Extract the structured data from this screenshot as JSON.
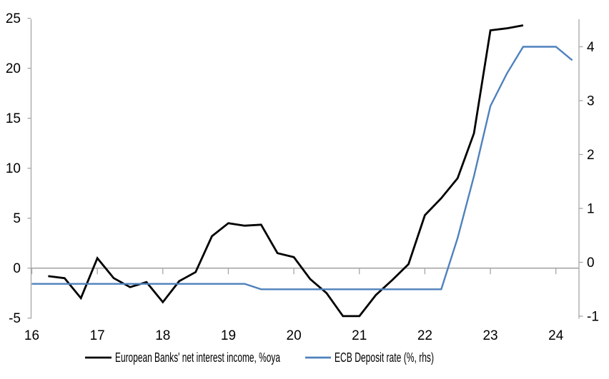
{
  "chart_data": {
    "type": "line",
    "title": "",
    "x_axis": {
      "ticks": [
        16,
        17,
        18,
        19,
        20,
        21,
        22,
        23,
        24
      ],
      "range": [
        16,
        24.36
      ],
      "tick_labels": [
        "16",
        "17",
        "18",
        "19",
        "20",
        "21",
        "22",
        "23",
        "24"
      ]
    },
    "left_axis": {
      "ticks": [
        -5,
        0,
        5,
        10,
        15,
        20,
        25
      ],
      "range": [
        -5,
        25
      ],
      "zero_gridline": true
    },
    "right_axis": {
      "ticks": [
        -1,
        0,
        1,
        2,
        3,
        4
      ],
      "range": [
        -1.05,
        4.5
      ]
    },
    "grid": "zero-line-only",
    "legend_position": "bottom",
    "series": [
      {
        "name": "European Banks' net interest income, %oya",
        "color": "#000000",
        "axis": "left",
        "width": 2.8,
        "points": [
          [
            16.25,
            -0.8
          ],
          [
            16.5,
            -1.0
          ],
          [
            16.75,
            -3.0
          ],
          [
            17.0,
            1.0
          ],
          [
            17.25,
            -1.0
          ],
          [
            17.5,
            -1.9
          ],
          [
            17.75,
            -1.4
          ],
          [
            18.0,
            -3.4
          ],
          [
            18.25,
            -1.3
          ],
          [
            18.5,
            -0.4
          ],
          [
            18.75,
            3.2
          ],
          [
            19.0,
            4.5
          ],
          [
            19.25,
            4.25
          ],
          [
            19.5,
            4.35
          ],
          [
            19.75,
            1.5
          ],
          [
            20.0,
            1.1
          ],
          [
            20.25,
            -1.1
          ],
          [
            20.5,
            -2.5
          ],
          [
            20.75,
            -4.8
          ],
          [
            21.0,
            -4.8
          ],
          [
            21.25,
            -2.7
          ],
          [
            21.5,
            -1.2
          ],
          [
            21.75,
            0.4
          ],
          [
            22.0,
            5.3
          ],
          [
            22.25,
            7.0
          ],
          [
            22.5,
            9.0
          ],
          [
            22.75,
            13.5
          ],
          [
            23.0,
            23.8
          ],
          [
            23.25,
            24.0
          ],
          [
            23.5,
            24.3
          ]
        ]
      },
      {
        "name": "ECB Deposit rate (%, rhs)",
        "color": "#4F81BD",
        "axis": "right",
        "width": 2.4,
        "points": [
          [
            16.0,
            -0.4
          ],
          [
            16.25,
            -0.4
          ],
          [
            16.5,
            -0.4
          ],
          [
            16.75,
            -0.4
          ],
          [
            17.0,
            -0.4
          ],
          [
            17.25,
            -0.4
          ],
          [
            17.5,
            -0.4
          ],
          [
            17.75,
            -0.4
          ],
          [
            18.0,
            -0.4
          ],
          [
            18.25,
            -0.4
          ],
          [
            18.5,
            -0.4
          ],
          [
            18.75,
            -0.4
          ],
          [
            19.0,
            -0.4
          ],
          [
            19.25,
            -0.4
          ],
          [
            19.5,
            -0.5
          ],
          [
            19.75,
            -0.5
          ],
          [
            20.0,
            -0.5
          ],
          [
            20.25,
            -0.5
          ],
          [
            20.5,
            -0.5
          ],
          [
            20.75,
            -0.5
          ],
          [
            21.0,
            -0.5
          ],
          [
            21.25,
            -0.5
          ],
          [
            21.5,
            -0.5
          ],
          [
            21.75,
            -0.5
          ],
          [
            22.0,
            -0.5
          ],
          [
            22.25,
            -0.5
          ],
          [
            22.5,
            0.45
          ],
          [
            22.75,
            1.6
          ],
          [
            23.0,
            2.9
          ],
          [
            23.25,
            3.5
          ],
          [
            23.5,
            4.0
          ],
          [
            23.75,
            4.0
          ],
          [
            24.0,
            4.0
          ],
          [
            24.25,
            3.75
          ]
        ]
      }
    ]
  },
  "colors": {
    "axis": "#A6A6A6",
    "background": "#FFFFFF",
    "series_nii": "#000000",
    "series_ecb": "#4F81BD"
  }
}
